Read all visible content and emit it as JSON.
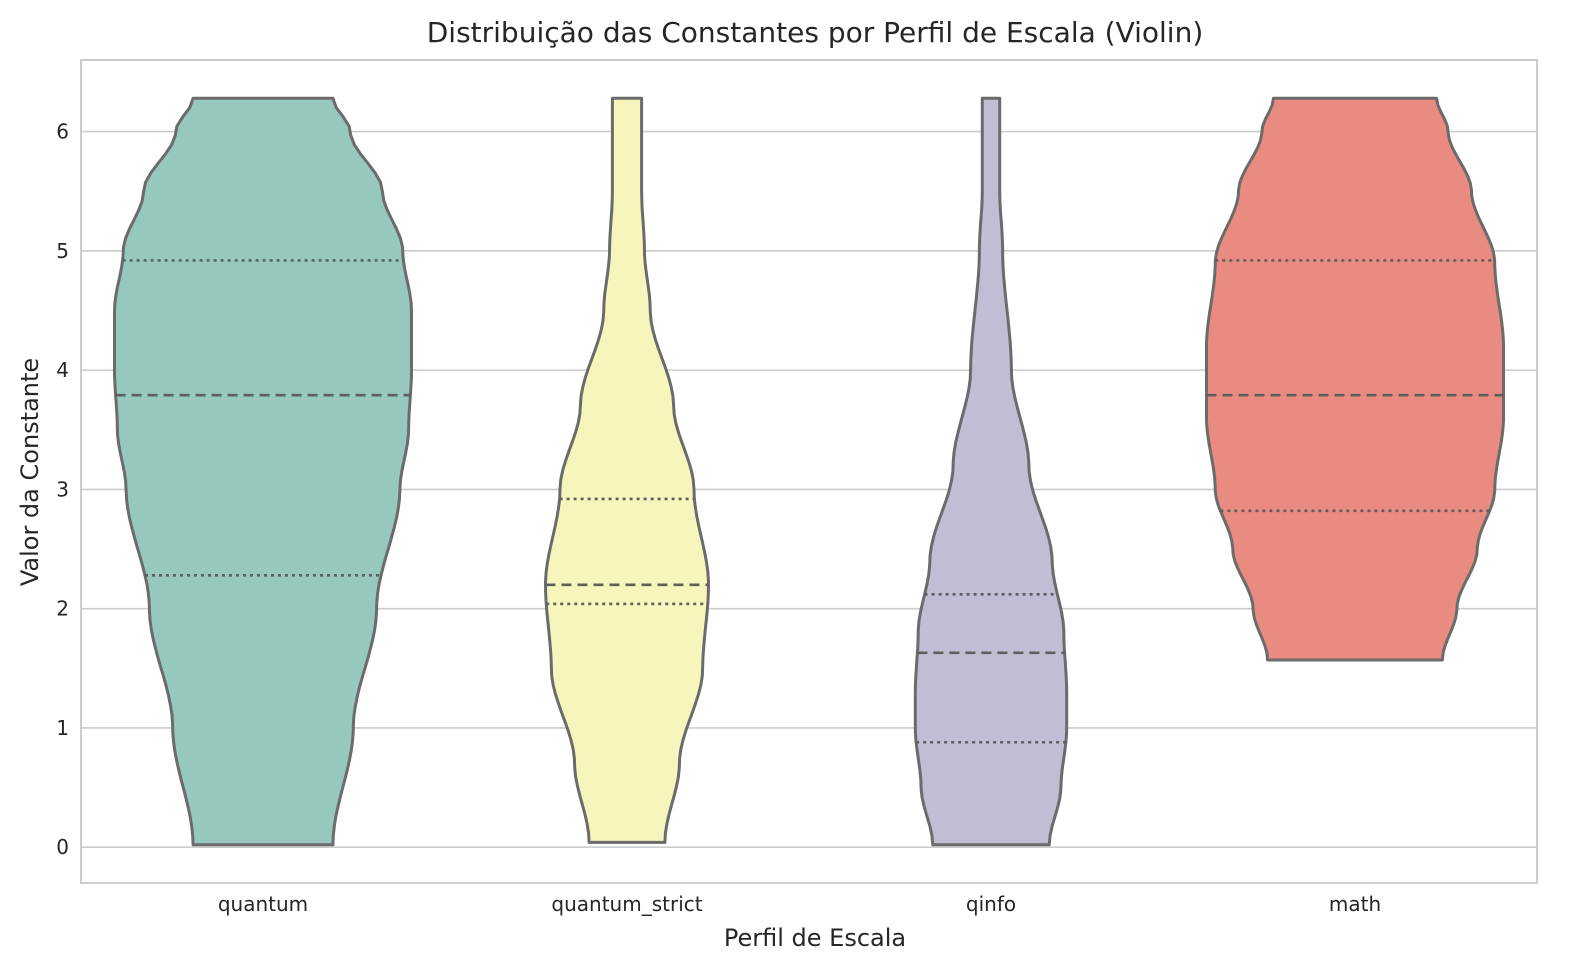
{
  "chart_data": {
    "type": "violin",
    "title": "Distribuição das Constantes por Perfil de Escala (Violin)",
    "xlabel": "Perfil de Escala",
    "ylabel": "Valor da Constante",
    "ylim": [
      -0.3,
      6.6
    ],
    "yticks": [
      0,
      1,
      2,
      3,
      4,
      5,
      6
    ],
    "grid": true,
    "categories": [
      "quantum",
      "quantum_strict",
      "qinfo",
      "math"
    ],
    "violins": [
      {
        "name": "quantum",
        "color": "#96c8bd",
        "min": 0.02,
        "max": 6.28,
        "q1": 2.28,
        "median": 3.79,
        "q3": 4.92,
        "profile": [
          [
            0.02,
            0.24
          ],
          [
            1.0,
            0.31
          ],
          [
            2.0,
            0.39
          ],
          [
            3.0,
            0.47
          ],
          [
            3.5,
            0.5
          ],
          [
            4.0,
            0.51
          ],
          [
            4.5,
            0.51
          ],
          [
            5.0,
            0.48
          ],
          [
            5.5,
            0.41
          ],
          [
            6.0,
            0.3
          ],
          [
            6.28,
            0.24
          ]
        ]
      },
      {
        "name": "quantum_strict",
        "color": "#f6f5bc",
        "min": 0.04,
        "max": 6.28,
        "q1": 2.04,
        "median": 2.2,
        "q3": 2.92,
        "profile": [
          [
            0.04,
            0.13
          ],
          [
            0.7,
            0.18
          ],
          [
            1.5,
            0.26
          ],
          [
            2.2,
            0.28
          ],
          [
            3.0,
            0.23
          ],
          [
            3.7,
            0.16
          ],
          [
            4.5,
            0.08
          ],
          [
            5.0,
            0.06
          ],
          [
            5.5,
            0.05
          ],
          [
            6.28,
            0.05
          ]
        ]
      },
      {
        "name": "qinfo",
        "color": "#c0bdd5",
        "min": 0.02,
        "max": 6.28,
        "q1": 0.88,
        "median": 1.63,
        "q3": 2.12,
        "profile": [
          [
            0.02,
            0.2
          ],
          [
            0.5,
            0.24
          ],
          [
            1.0,
            0.26
          ],
          [
            1.3,
            0.26
          ],
          [
            1.8,
            0.25
          ],
          [
            2.4,
            0.21
          ],
          [
            3.2,
            0.13
          ],
          [
            4.0,
            0.07
          ],
          [
            5.0,
            0.04
          ],
          [
            5.5,
            0.03
          ],
          [
            6.28,
            0.03
          ]
        ]
      },
      {
        "name": "math",
        "color": "#e98b80",
        "min": 1.57,
        "max": 6.28,
        "q1": 2.82,
        "median": 3.79,
        "q3": 4.92,
        "profile": [
          [
            1.57,
            0.3
          ],
          [
            2.0,
            0.35
          ],
          [
            2.5,
            0.42
          ],
          [
            3.0,
            0.48
          ],
          [
            3.6,
            0.51
          ],
          [
            4.2,
            0.51
          ],
          [
            4.9,
            0.48
          ],
          [
            5.5,
            0.4
          ],
          [
            6.0,
            0.32
          ],
          [
            6.28,
            0.28
          ]
        ]
      }
    ]
  }
}
